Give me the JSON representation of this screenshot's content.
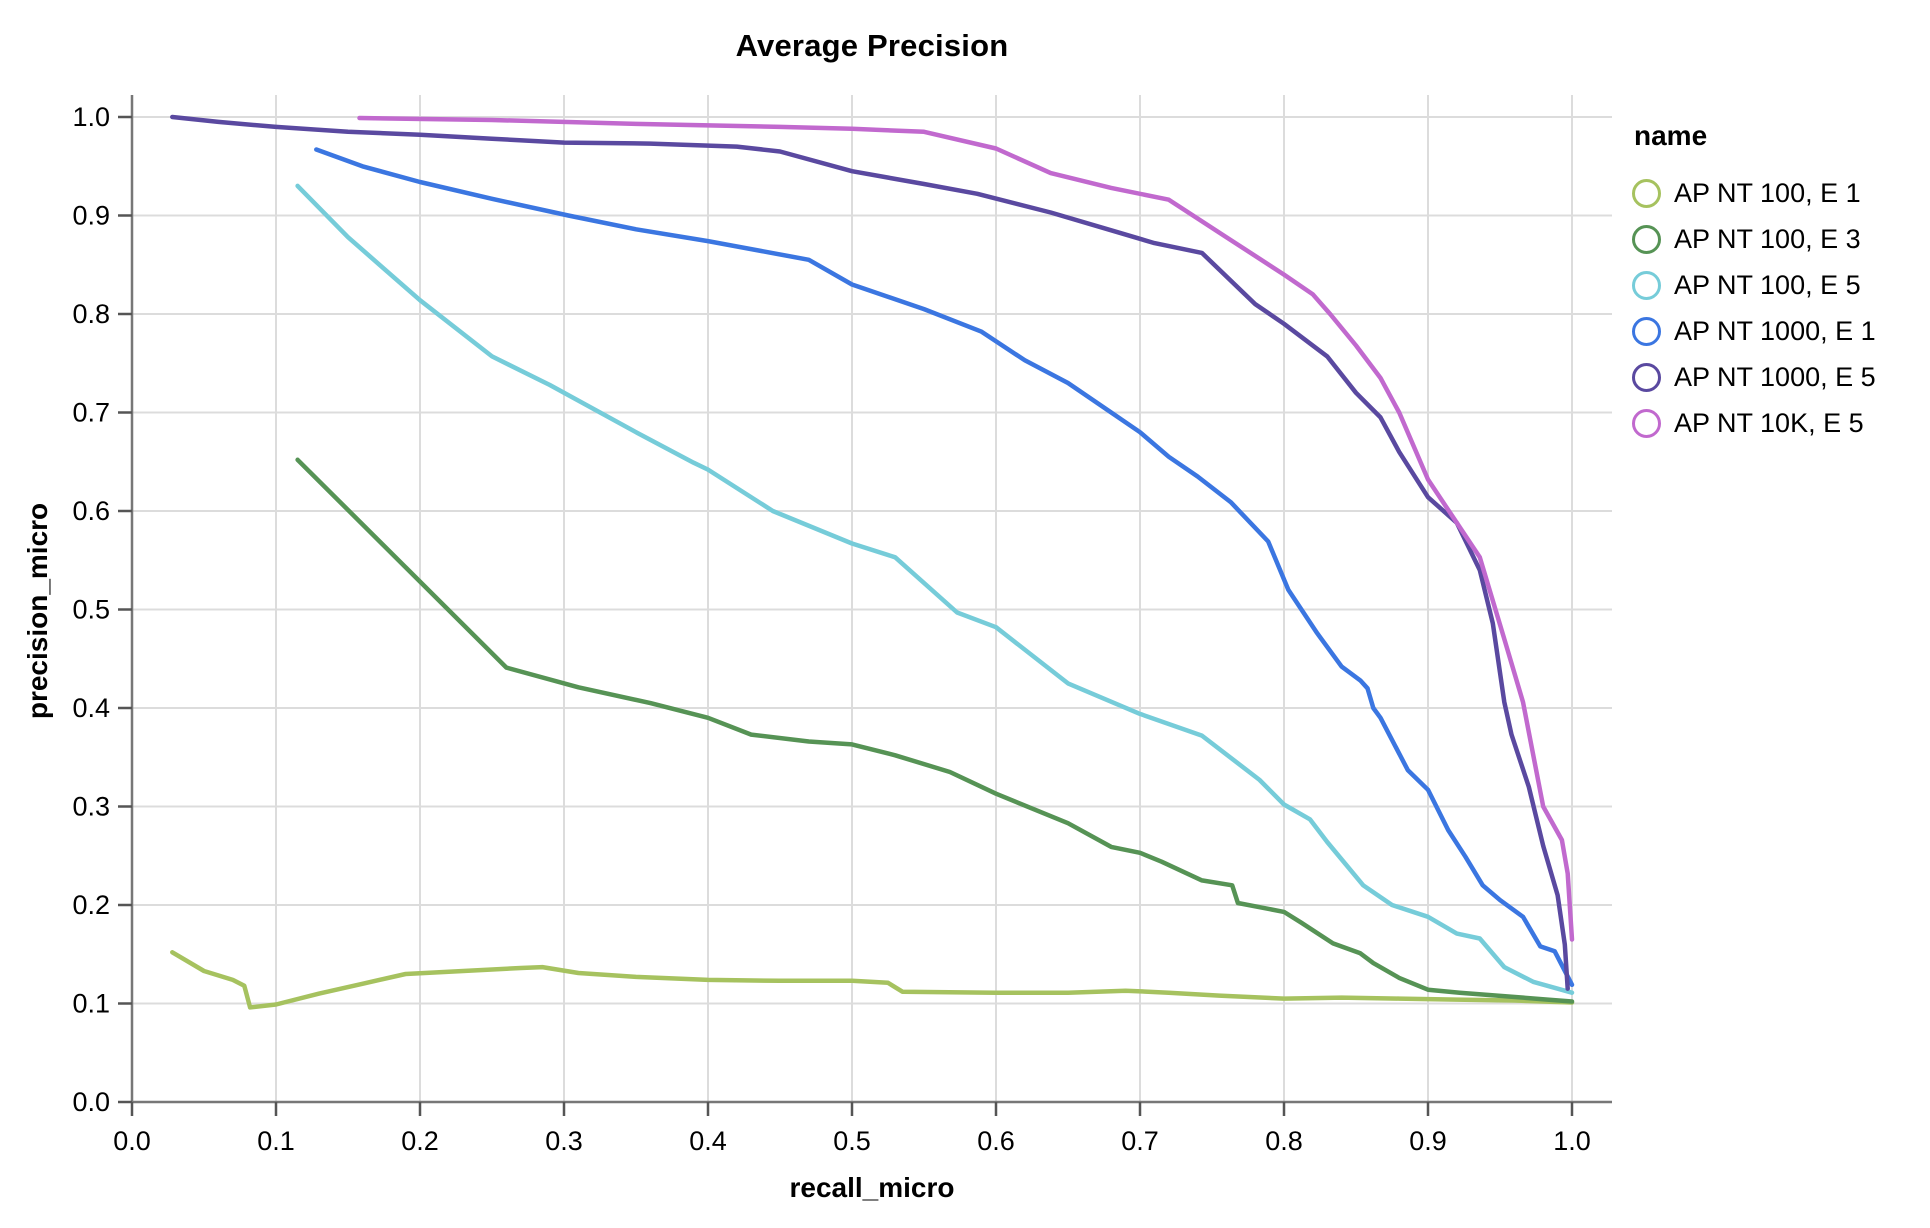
{
  "chart_data": {
    "type": "line",
    "title": "Average Precision",
    "xlabel": "recall_micro",
    "ylabel": "precision_micro",
    "xlim": [
      0.0,
      1.0
    ],
    "ylim": [
      0.0,
      1.0
    ],
    "grid": true,
    "legend_position": "right",
    "legend_title": "name",
    "x_ticks": [
      0.0,
      0.1,
      0.2,
      0.3,
      0.4,
      0.5,
      0.6,
      0.7,
      0.8,
      0.9,
      1.0
    ],
    "x_tick_labels": [
      "0.0",
      "0.1",
      "0.2",
      "0.3",
      "0.4",
      "0.5",
      "0.6",
      "0.7",
      "0.8",
      "0.9",
      "1.0"
    ],
    "y_ticks": [
      0.0,
      0.1,
      0.2,
      0.3,
      0.4,
      0.5,
      0.6,
      0.7,
      0.8,
      0.9,
      1.0
    ],
    "y_tick_labels": [
      "0.0",
      "0.1",
      "0.2",
      "0.3",
      "0.4",
      "0.5",
      "0.6",
      "0.7",
      "0.8",
      "0.9",
      "1.0"
    ],
    "series": [
      {
        "name": "AP NT 100, E 1",
        "color": "#a6c25f",
        "points": [
          [
            0.028,
            0.152
          ],
          [
            0.05,
            0.133
          ],
          [
            0.07,
            0.124
          ],
          [
            0.078,
            0.118
          ],
          [
            0.082,
            0.096
          ],
          [
            0.1,
            0.099
          ],
          [
            0.13,
            0.11
          ],
          [
            0.16,
            0.12
          ],
          [
            0.19,
            0.13
          ],
          [
            0.23,
            0.133
          ],
          [
            0.27,
            0.136
          ],
          [
            0.285,
            0.137
          ],
          [
            0.31,
            0.131
          ],
          [
            0.35,
            0.127
          ],
          [
            0.4,
            0.124
          ],
          [
            0.45,
            0.123
          ],
          [
            0.5,
            0.123
          ],
          [
            0.525,
            0.121
          ],
          [
            0.535,
            0.112
          ],
          [
            0.6,
            0.111
          ],
          [
            0.65,
            0.111
          ],
          [
            0.69,
            0.113
          ],
          [
            0.72,
            0.111
          ],
          [
            0.755,
            0.108
          ],
          [
            0.8,
            0.105
          ],
          [
            0.84,
            0.106
          ],
          [
            0.88,
            0.105
          ],
          [
            0.92,
            0.104
          ],
          [
            0.96,
            0.103
          ],
          [
            1.0,
            0.101
          ]
        ]
      },
      {
        "name": "AP NT 100, E 3",
        "color": "#569355",
        "points": [
          [
            0.115,
            0.652
          ],
          [
            0.26,
            0.441
          ],
          [
            0.31,
            0.421
          ],
          [
            0.36,
            0.405
          ],
          [
            0.4,
            0.39
          ],
          [
            0.43,
            0.373
          ],
          [
            0.47,
            0.366
          ],
          [
            0.5,
            0.363
          ],
          [
            0.53,
            0.352
          ],
          [
            0.568,
            0.335
          ],
          [
            0.6,
            0.313
          ],
          [
            0.65,
            0.283
          ],
          [
            0.68,
            0.259
          ],
          [
            0.7,
            0.253
          ],
          [
            0.715,
            0.244
          ],
          [
            0.743,
            0.225
          ],
          [
            0.764,
            0.22
          ],
          [
            0.768,
            0.202
          ],
          [
            0.8,
            0.193
          ],
          [
            0.812,
            0.182
          ],
          [
            0.834,
            0.161
          ],
          [
            0.853,
            0.151
          ],
          [
            0.862,
            0.141
          ],
          [
            0.88,
            0.126
          ],
          [
            0.9,
            0.114
          ],
          [
            0.922,
            0.111
          ],
          [
            0.957,
            0.107
          ],
          [
            0.983,
            0.104
          ],
          [
            1.0,
            0.102
          ]
        ]
      },
      {
        "name": "AP NT 100, E 5",
        "color": "#76ccd9",
        "points": [
          [
            0.115,
            0.93
          ],
          [
            0.15,
            0.878
          ],
          [
            0.2,
            0.814
          ],
          [
            0.25,
            0.757
          ],
          [
            0.29,
            0.728
          ],
          [
            0.35,
            0.68
          ],
          [
            0.39,
            0.649
          ],
          [
            0.4,
            0.642
          ],
          [
            0.445,
            0.6
          ],
          [
            0.5,
            0.567
          ],
          [
            0.53,
            0.553
          ],
          [
            0.573,
            0.497
          ],
          [
            0.6,
            0.482
          ],
          [
            0.65,
            0.425
          ],
          [
            0.7,
            0.394
          ],
          [
            0.743,
            0.372
          ],
          [
            0.783,
            0.327
          ],
          [
            0.8,
            0.302
          ],
          [
            0.818,
            0.287
          ],
          [
            0.83,
            0.264
          ],
          [
            0.855,
            0.22
          ],
          [
            0.875,
            0.2
          ],
          [
            0.9,
            0.188
          ],
          [
            0.92,
            0.171
          ],
          [
            0.936,
            0.166
          ],
          [
            0.953,
            0.137
          ],
          [
            0.973,
            0.122
          ],
          [
            1.0,
            0.111
          ]
        ]
      },
      {
        "name": "AP NT 1000, E 1",
        "color": "#3b76e1",
        "points": [
          [
            0.128,
            0.967
          ],
          [
            0.16,
            0.95
          ],
          [
            0.2,
            0.934
          ],
          [
            0.25,
            0.917
          ],
          [
            0.303,
            0.9
          ],
          [
            0.35,
            0.886
          ],
          [
            0.4,
            0.874
          ],
          [
            0.47,
            0.855
          ],
          [
            0.5,
            0.83
          ],
          [
            0.55,
            0.805
          ],
          [
            0.59,
            0.782
          ],
          [
            0.62,
            0.753
          ],
          [
            0.65,
            0.73
          ],
          [
            0.68,
            0.7
          ],
          [
            0.7,
            0.68
          ],
          [
            0.72,
            0.655
          ],
          [
            0.74,
            0.635
          ],
          [
            0.763,
            0.609
          ],
          [
            0.789,
            0.569
          ],
          [
            0.803,
            0.52
          ],
          [
            0.823,
            0.476
          ],
          [
            0.84,
            0.442
          ],
          [
            0.853,
            0.428
          ],
          [
            0.858,
            0.42
          ],
          [
            0.862,
            0.4
          ],
          [
            0.867,
            0.39
          ],
          [
            0.886,
            0.337
          ],
          [
            0.9,
            0.317
          ],
          [
            0.914,
            0.276
          ],
          [
            0.926,
            0.249
          ],
          [
            0.938,
            0.22
          ],
          [
            0.95,
            0.205
          ],
          [
            0.966,
            0.188
          ],
          [
            0.978,
            0.158
          ],
          [
            0.988,
            0.153
          ],
          [
            1.0,
            0.119
          ]
        ]
      },
      {
        "name": "AP NT 1000, E 5",
        "color": "#5a49a0",
        "points": [
          [
            0.028,
            1.0
          ],
          [
            0.06,
            0.995
          ],
          [
            0.1,
            0.99
          ],
          [
            0.15,
            0.985
          ],
          [
            0.2,
            0.982
          ],
          [
            0.25,
            0.978
          ],
          [
            0.3,
            0.974
          ],
          [
            0.36,
            0.973
          ],
          [
            0.42,
            0.97
          ],
          [
            0.45,
            0.965
          ],
          [
            0.5,
            0.945
          ],
          [
            0.55,
            0.932
          ],
          [
            0.587,
            0.922
          ],
          [
            0.638,
            0.903
          ],
          [
            0.68,
            0.885
          ],
          [
            0.71,
            0.872
          ],
          [
            0.743,
            0.862
          ],
          [
            0.78,
            0.81
          ],
          [
            0.8,
            0.79
          ],
          [
            0.83,
            0.757
          ],
          [
            0.85,
            0.72
          ],
          [
            0.867,
            0.695
          ],
          [
            0.88,
            0.66
          ],
          [
            0.9,
            0.614
          ],
          [
            0.92,
            0.588
          ],
          [
            0.936,
            0.54
          ],
          [
            0.945,
            0.486
          ],
          [
            0.953,
            0.406
          ],
          [
            0.958,
            0.373
          ],
          [
            0.97,
            0.32
          ],
          [
            0.98,
            0.26
          ],
          [
            0.99,
            0.21
          ],
          [
            0.995,
            0.16
          ],
          [
            0.997,
            0.115
          ]
        ]
      },
      {
        "name": "AP NT 10K, E 5",
        "color": "#c169ce",
        "points": [
          [
            0.158,
            0.999
          ],
          [
            0.25,
            0.997
          ],
          [
            0.35,
            0.993
          ],
          [
            0.45,
            0.99
          ],
          [
            0.5,
            0.988
          ],
          [
            0.55,
            0.985
          ],
          [
            0.6,
            0.968
          ],
          [
            0.638,
            0.943
          ],
          [
            0.68,
            0.928
          ],
          [
            0.72,
            0.916
          ],
          [
            0.76,
            0.878
          ],
          [
            0.8,
            0.84
          ],
          [
            0.82,
            0.82
          ],
          [
            0.832,
            0.8
          ],
          [
            0.85,
            0.768
          ],
          [
            0.867,
            0.735
          ],
          [
            0.88,
            0.7
          ],
          [
            0.9,
            0.632
          ],
          [
            0.92,
            0.588
          ],
          [
            0.936,
            0.553
          ],
          [
            0.953,
            0.47
          ],
          [
            0.966,
            0.406
          ],
          [
            0.98,
            0.3
          ],
          [
            0.993,
            0.266
          ],
          [
            0.997,
            0.232
          ],
          [
            1.0,
            0.165
          ]
        ]
      }
    ],
    "style": {
      "grid_color": "#dcdcdc",
      "axis_color": "#777777",
      "tick_color": "#555555",
      "text_color": "#000000"
    }
  }
}
